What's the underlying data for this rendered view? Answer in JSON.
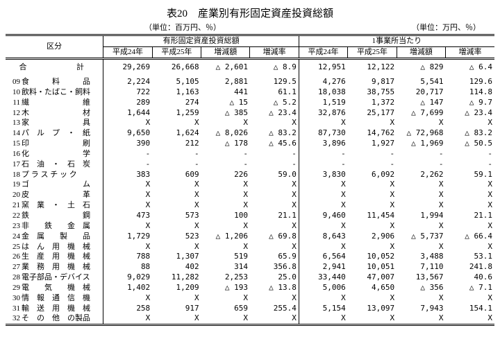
{
  "title": "表20　産業別有形固定資産投資総額",
  "unit_left": "（単位：百万円、％）",
  "unit_right": "（単位：万円、％）",
  "header": {
    "kubun": "区分",
    "group1": "有形固定資産投資総額",
    "group2": "1事業所当たり",
    "h24": "平成24年",
    "h25": "平成25年",
    "zougen": "増減額",
    "zougenritsu": "増減率"
  },
  "total_label": "合　　計",
  "total": [
    "29,269",
    "26,668",
    "△ 2,601",
    "△  8.9",
    "12,951",
    "12,122",
    "△  829",
    "△  6.4"
  ],
  "rows": [
    {
      "code": "09",
      "label": "食　　　料　　　品",
      "v": [
        "2,224",
        "5,105",
        "2,881",
        "129.5",
        "4,276",
        "9,817",
        "5,541",
        "129.6"
      ]
    },
    {
      "code": "10",
      "label": "飲料・たばこ・飼料",
      "v": [
        "722",
        "1,163",
        "441",
        "61.1",
        "18,038",
        "38,755",
        "20,717",
        "114.8"
      ]
    },
    {
      "code": "11",
      "label": "繊　　　　　　　維",
      "v": [
        "289",
        "274",
        "△   15",
        "△  5.2",
        "1,519",
        "1,372",
        "△  147",
        "△  9.7"
      ]
    },
    {
      "code": "12",
      "label": "木　　　　　　　材",
      "v": [
        "1,644",
        "1,259",
        "△  385",
        "△ 23.4",
        "32,876",
        "25,177",
        "△ 7,699",
        "△ 23.4"
      ]
    },
    {
      "code": "13",
      "label": "家　　　　　　　具",
      "v": [
        "X",
        "X",
        "X",
        "X",
        "X",
        "X",
        "X",
        "X"
      ]
    },
    {
      "code": "14",
      "label": "パ　ル　プ　・　紙",
      "v": [
        "9,650",
        "1,624",
        "△ 8,026",
        "△ 83.2",
        "87,730",
        "14,762",
        "△ 72,968",
        "△ 83.2"
      ]
    },
    {
      "code": "15",
      "label": "印　　　　　　　刷",
      "v": [
        "390",
        "212",
        "△  178",
        "△ 45.6",
        "3,896",
        "1,927",
        "△ 1,969",
        "△ 50.5"
      ]
    },
    {
      "code": "16",
      "label": "化　　　　　　　学",
      "v": [
        "-",
        "-",
        "-",
        "-",
        "-",
        "-",
        "-",
        "-"
      ]
    },
    {
      "code": "17",
      "label": "石　油　・　石　炭",
      "v": [
        "-",
        "-",
        "-",
        "-",
        "-",
        "-",
        "-",
        "-"
      ]
    },
    {
      "code": "18",
      "label": "プ ラ ス チ ッ ク",
      "v": [
        "383",
        "609",
        "226",
        "59.0",
        "3,830",
        "6,092",
        "2,262",
        "59.1"
      ]
    },
    {
      "code": "19",
      "label": "ゴ　　　　　　　ム",
      "v": [
        "X",
        "X",
        "X",
        "X",
        "X",
        "X",
        "X",
        "X"
      ]
    },
    {
      "code": "20",
      "label": "皮　　　　　　　革",
      "v": [
        "X",
        "X",
        "X",
        "X",
        "X",
        "X",
        "X",
        "X"
      ]
    },
    {
      "code": "21",
      "label": "窯　業　・　土　石",
      "v": [
        "X",
        "X",
        "X",
        "X",
        "X",
        "X",
        "X",
        "X"
      ]
    },
    {
      "code": "22",
      "label": "鉄　　　　　　　鋼",
      "v": [
        "473",
        "573",
        "100",
        "21.1",
        "9,460",
        "11,454",
        "1,994",
        "21.1"
      ]
    },
    {
      "code": "23",
      "label": "非　　鉄　　金　属",
      "v": [
        "X",
        "X",
        "X",
        "X",
        "X",
        "X",
        "X",
        "X"
      ]
    },
    {
      "code": "24",
      "label": "金　属　　製　　品",
      "v": [
        "1,729",
        "523",
        "△ 1,206",
        "△ 69.8",
        "8,643",
        "2,906",
        "△ 5,737",
        "△ 66.4"
      ]
    },
    {
      "code": "25",
      "label": "は　ん　用　機　械",
      "v": [
        "X",
        "X",
        "X",
        "X",
        "X",
        "X",
        "X",
        "X"
      ]
    },
    {
      "code": "26",
      "label": "生　産　用　機　械",
      "v": [
        "788",
        "1,307",
        "519",
        "65.9",
        "6,564",
        "10,052",
        "3,488",
        "53.1"
      ]
    },
    {
      "code": "27",
      "label": "業　務　用　機　械",
      "v": [
        "88",
        "402",
        "314",
        "356.8",
        "2,941",
        "10,051",
        "7,110",
        "241.8"
      ]
    },
    {
      "code": "28",
      "label": "電子部品・デバイス",
      "v": [
        "9,029",
        "11,282",
        "2,253",
        "25.0",
        "33,440",
        "47,007",
        "13,567",
        "40.6"
      ]
    },
    {
      "code": "29",
      "label": "電　　気　　機　械",
      "v": [
        "1,402",
        "1,209",
        "△  193",
        "△ 13.8",
        "5,006",
        "4,650",
        "△  356",
        "△  7.1"
      ]
    },
    {
      "code": "30",
      "label": "情　報　通　信　機",
      "v": [
        "X",
        "X",
        "X",
        "X",
        "X",
        "X",
        "X",
        "X"
      ]
    },
    {
      "code": "31",
      "label": "輸　送　用　機　械",
      "v": [
        "258",
        "917",
        "659",
        "255.4",
        "5,154",
        "13,097",
        "7,943",
        "154.1"
      ]
    },
    {
      "code": "32",
      "label": "そ　の　他　の製品",
      "v": [
        "X",
        "X",
        "X",
        "X",
        "X",
        "X",
        "X",
        "X"
      ]
    }
  ],
  "col_widths": {
    "label": 140,
    "data": 70
  }
}
